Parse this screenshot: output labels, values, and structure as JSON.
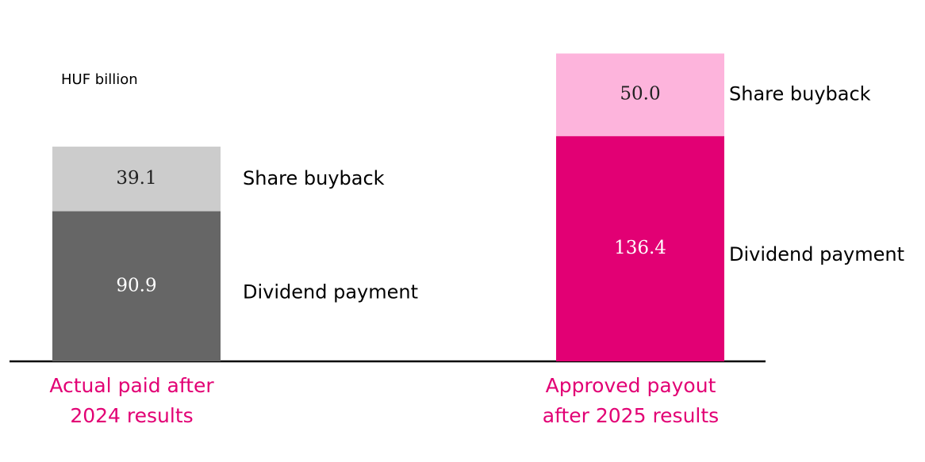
{
  "chart_data": {
    "type": "stacked_bar",
    "unit": "HUF billion",
    "categories": [
      [
        "Actual paid after",
        "2024 results"
      ],
      [
        "Approved payout",
        "after 2025 results"
      ]
    ],
    "category_color": "#e20074",
    "ylim": [
      0,
      190
    ],
    "series": [
      {
        "name": "Dividend payment",
        "values": [
          90.9,
          136.4
        ],
        "value_labels": [
          "90.9",
          "136.4"
        ],
        "colors": [
          "#666666",
          "#e20074"
        ],
        "label_color": "#ffffff"
      },
      {
        "name": "Share buyback",
        "values": [
          39.1,
          50.0
        ],
        "value_labels": [
          "39.1",
          "50.0"
        ],
        "colors": [
          "#cccccc",
          "#fdb4dc"
        ],
        "label_color": "#222222"
      }
    ]
  }
}
